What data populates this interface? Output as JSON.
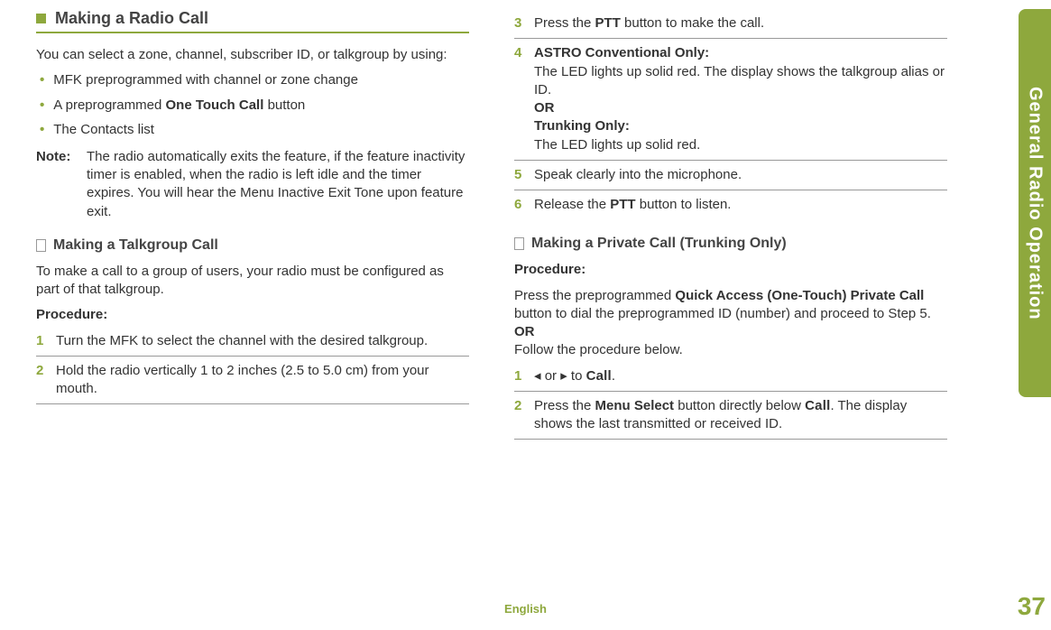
{
  "sideTab": "General Radio Operation",
  "pageNumber": "37",
  "footerLang": "English",
  "left": {
    "sectionTitle": "Making a Radio Call",
    "intro": "You can select a zone, channel, subscriber ID, or talkgroup by using:",
    "bullets": [
      {
        "pre": "MFK preprogrammed with channel or zone change"
      },
      {
        "pre": "A preprogrammed ",
        "bold": "One Touch Call",
        "post": " button"
      },
      {
        "pre": "The Contacts list"
      }
    ],
    "noteLabel": "Note:",
    "noteText": "The radio automatically exits the feature, if the feature inactivity timer is enabled, when the radio is left idle and the timer expires. You will hear the Menu Inactive Exit Tone upon feature exit.",
    "subhead1": "Making a Talkgroup Call",
    "talkgroupIntro": "To make a call to a group of users, your radio must be configured as part of that talkgroup.",
    "procLabel": "Procedure:",
    "steps": [
      {
        "n": "1",
        "text": "Turn the MFK to select the channel with the desired talkgroup."
      },
      {
        "n": "2",
        "text": "Hold the radio vertically 1 to 2 inches (2.5 to 5.0 cm) from your mouth."
      }
    ]
  },
  "right": {
    "stepsTop": [
      {
        "n": "3",
        "pre": "Press the ",
        "bold": "PTT",
        "post": " button to make the call."
      },
      {
        "n": "4",
        "b1": "ASTRO Conventional Only:",
        "l1": "The LED lights up solid red. The display shows the talkgroup alias or ID.",
        "or": "OR",
        "b2": "Trunking Only:",
        "l2": "The LED lights up solid red."
      },
      {
        "n": "5",
        "text": "Speak clearly into the microphone."
      },
      {
        "n": "6",
        "pre": "Release the ",
        "bold": "PTT",
        "post": " button to listen."
      }
    ],
    "subhead2": "Making a Private Call (Trunking Only)",
    "procLabel": "Procedure:",
    "privIntroPre": "Press the preprogrammed ",
    "privIntroBold": "Quick Access (One-Touch) Private Call",
    "privIntroPost": " button to dial the preprogrammed ID (number) and proceed to Step 5.",
    "or": "OR",
    "follow": "Follow the procedure below.",
    "privSteps": [
      {
        "n": "1",
        "nav": "◂ or ▸ to ",
        "mono": "Call",
        "post": "."
      },
      {
        "n": "2",
        "pre": "Press the ",
        "bold": "Menu Select",
        "mid": " button directly below ",
        "mono": "Call",
        "post": ". The display shows the last transmitted or received ID."
      }
    ]
  }
}
